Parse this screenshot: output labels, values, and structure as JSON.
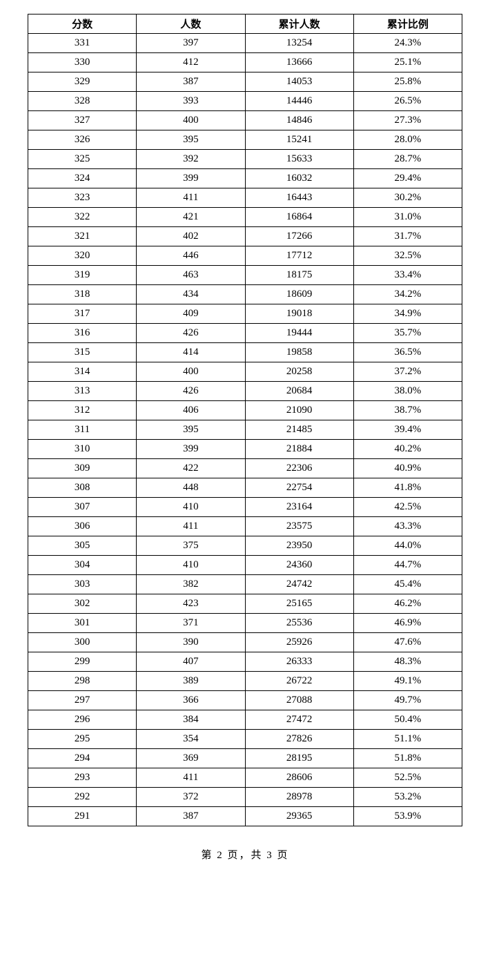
{
  "table": {
    "columns": [
      "分数",
      "人数",
      "累计人数",
      "累计比例"
    ],
    "rows": [
      [
        "331",
        "397",
        "13254",
        "24.3%"
      ],
      [
        "330",
        "412",
        "13666",
        "25.1%"
      ],
      [
        "329",
        "387",
        "14053",
        "25.8%"
      ],
      [
        "328",
        "393",
        "14446",
        "26.5%"
      ],
      [
        "327",
        "400",
        "14846",
        "27.3%"
      ],
      [
        "326",
        "395",
        "15241",
        "28.0%"
      ],
      [
        "325",
        "392",
        "15633",
        "28.7%"
      ],
      [
        "324",
        "399",
        "16032",
        "29.4%"
      ],
      [
        "323",
        "411",
        "16443",
        "30.2%"
      ],
      [
        "322",
        "421",
        "16864",
        "31.0%"
      ],
      [
        "321",
        "402",
        "17266",
        "31.7%"
      ],
      [
        "320",
        "446",
        "17712",
        "32.5%"
      ],
      [
        "319",
        "463",
        "18175",
        "33.4%"
      ],
      [
        "318",
        "434",
        "18609",
        "34.2%"
      ],
      [
        "317",
        "409",
        "19018",
        "34.9%"
      ],
      [
        "316",
        "426",
        "19444",
        "35.7%"
      ],
      [
        "315",
        "414",
        "19858",
        "36.5%"
      ],
      [
        "314",
        "400",
        "20258",
        "37.2%"
      ],
      [
        "313",
        "426",
        "20684",
        "38.0%"
      ],
      [
        "312",
        "406",
        "21090",
        "38.7%"
      ],
      [
        "311",
        "395",
        "21485",
        "39.4%"
      ],
      [
        "310",
        "399",
        "21884",
        "40.2%"
      ],
      [
        "309",
        "422",
        "22306",
        "40.9%"
      ],
      [
        "308",
        "448",
        "22754",
        "41.8%"
      ],
      [
        "307",
        "410",
        "23164",
        "42.5%"
      ],
      [
        "306",
        "411",
        "23575",
        "43.3%"
      ],
      [
        "305",
        "375",
        "23950",
        "44.0%"
      ],
      [
        "304",
        "410",
        "24360",
        "44.7%"
      ],
      [
        "303",
        "382",
        "24742",
        "45.4%"
      ],
      [
        "302",
        "423",
        "25165",
        "46.2%"
      ],
      [
        "301",
        "371",
        "25536",
        "46.9%"
      ],
      [
        "300",
        "390",
        "25926",
        "47.6%"
      ],
      [
        "299",
        "407",
        "26333",
        "48.3%"
      ],
      [
        "298",
        "389",
        "26722",
        "49.1%"
      ],
      [
        "297",
        "366",
        "27088",
        "49.7%"
      ],
      [
        "296",
        "384",
        "27472",
        "50.4%"
      ],
      [
        "295",
        "354",
        "27826",
        "51.1%"
      ],
      [
        "294",
        "369",
        "28195",
        "51.8%"
      ],
      [
        "293",
        "411",
        "28606",
        "52.5%"
      ],
      [
        "292",
        "372",
        "28978",
        "53.2%"
      ],
      [
        "291",
        "387",
        "29365",
        "53.9%"
      ]
    ],
    "column_widths": [
      "25%",
      "25%",
      "25%",
      "25%"
    ],
    "border_color": "#000000",
    "background_color": "#ffffff",
    "font_size": 15,
    "header_font_weight": "bold",
    "cell_alignment": "center"
  },
  "footer": {
    "text": "第 2 页，共 3 页"
  }
}
